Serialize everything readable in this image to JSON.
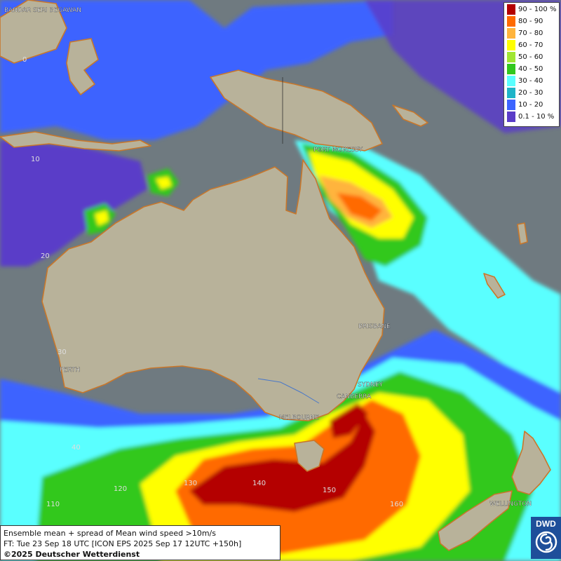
{
  "map": {
    "places": [
      {
        "id": "bandar",
        "label": "BANDAR SERI BEGAWAN"
      },
      {
        "id": "portmoresby",
        "label": "PORT MORESBY"
      },
      {
        "id": "brisbane",
        "label": "BRISBANE"
      },
      {
        "id": "perth",
        "label": "PERTH"
      },
      {
        "id": "sydney",
        "label": "SYDNEY"
      },
      {
        "id": "canberra",
        "label": "CANBERRA"
      },
      {
        "id": "melbourne",
        "label": "MELBOURNE"
      },
      {
        "id": "wellington",
        "label": "WELLINGTON"
      }
    ],
    "grid_labels": [
      {
        "id": "lat0",
        "label": "0"
      },
      {
        "id": "lat10",
        "label": "10"
      },
      {
        "id": "lat20",
        "label": "20"
      },
      {
        "id": "lat30",
        "label": "30"
      },
      {
        "id": "lat40",
        "label": "40"
      },
      {
        "id": "lon110",
        "label": "110"
      },
      {
        "id": "lon120",
        "label": "120"
      },
      {
        "id": "lon130",
        "label": "130"
      },
      {
        "id": "lon140",
        "label": "140"
      },
      {
        "id": "lon150",
        "label": "150"
      },
      {
        "id": "lon160",
        "label": "160"
      }
    ],
    "colors": {
      "ocean": "#6f7a80",
      "land": "#b8b29a",
      "coast": "#c8772b",
      "river": "#4a78c8"
    }
  },
  "legend": {
    "entries": [
      {
        "label": "90 - 100 %",
        "color": "#b40000"
      },
      {
        "label": "80 - 90",
        "color": "#ff6a00"
      },
      {
        "label": "70 - 80",
        "color": "#ffb43c"
      },
      {
        "label": "60 - 70",
        "color": "#ffff00"
      },
      {
        "label": "50 - 60",
        "color": "#a0e632"
      },
      {
        "label": "40 - 50",
        "color": "#32c81e"
      },
      {
        "label": "30 - 40",
        "color": "#5affff"
      },
      {
        "label": "20 - 30",
        "color": "#1eb4c8"
      },
      {
        "label": "10 - 20",
        "color": "#3c64ff"
      },
      {
        "label": "0.1 - 10 %",
        "color": "#5a3cc8"
      }
    ]
  },
  "info": {
    "line1": "Ensemble mean + spread of Mean wind speed >10m/s",
    "line2": "FT: Tue 23 Sep 18 UTC [ICON EPS 2025 Sep 17 12UTC +150h]",
    "line3": "©2025 Deutscher Wetterdienst"
  },
  "logo": {
    "text": "DWD",
    "icon": "dwd-swirl-icon"
  }
}
